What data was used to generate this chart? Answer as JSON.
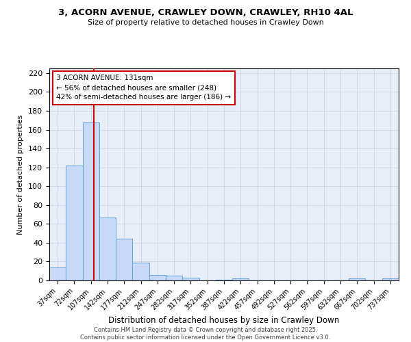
{
  "title_line1": "3, ACORN AVENUE, CRAWLEY DOWN, CRAWLEY, RH10 4AL",
  "title_line2": "Size of property relative to detached houses in Crawley Down",
  "xlabel": "Distribution of detached houses by size in Crawley Down",
  "ylabel": "Number of detached properties",
  "bar_edges": [
    37,
    72,
    107,
    142,
    177,
    212,
    247,
    282,
    317,
    352,
    387,
    422,
    457,
    492,
    527,
    562,
    597,
    632,
    667,
    702,
    737
  ],
  "bar_heights": [
    14,
    122,
    168,
    67,
    44,
    19,
    6,
    5,
    3,
    0,
    1,
    2,
    0,
    0,
    0,
    0,
    0,
    0,
    2,
    0,
    2
  ],
  "bar_color": "#c9daf8",
  "bar_edge_color": "#6fa8dc",
  "property_size": 131,
  "vline_color": "#cc0000",
  "annotation_line1": "3 ACORN AVENUE: 131sqm",
  "annotation_line2": "← 56% of detached houses are smaller (248)",
  "annotation_line3": "42% of semi-detached houses are larger (186) →",
  "annotation_box_color": "#ffffff",
  "annotation_box_edge": "#cc0000",
  "ylim": [
    0,
    225
  ],
  "yticks": [
    0,
    20,
    40,
    60,
    80,
    100,
    120,
    140,
    160,
    180,
    200,
    220
  ],
  "grid_color": "#d0d8e8",
  "bg_color": "#e8eef8",
  "footnote": "Contains HM Land Registry data © Crown copyright and database right 2025.\nContains public sector information licensed under the Open Government Licence v3.0."
}
